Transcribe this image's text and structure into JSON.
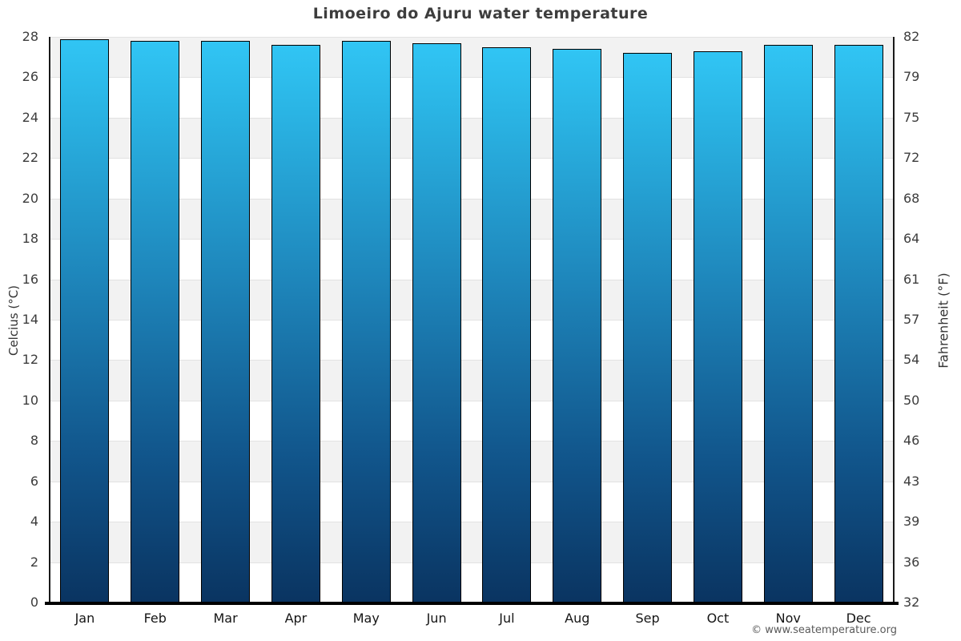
{
  "chart_data": {
    "type": "bar",
    "title": "Limoeiro do Ajuru water temperature",
    "categories": [
      "Jan",
      "Feb",
      "Mar",
      "Apr",
      "May",
      "Jun",
      "Jul",
      "Aug",
      "Sep",
      "Oct",
      "Nov",
      "Dec"
    ],
    "values": [
      27.9,
      27.8,
      27.8,
      27.6,
      27.8,
      27.7,
      27.5,
      27.4,
      27.2,
      27.3,
      27.6,
      27.6
    ],
    "unit": "°C",
    "ylabel_left": "Celcius (°C)",
    "ylabel_right": "Fahrenheit (°F)",
    "xlabel": "",
    "ylim": [
      0,
      28
    ],
    "yticks_celsius": [
      0,
      2,
      4,
      6,
      8,
      10,
      12,
      14,
      16,
      18,
      20,
      22,
      24,
      26,
      28
    ],
    "yticks_fahrenheit_labels": [
      "32",
      "36",
      "39",
      "43",
      "46",
      "50",
      "54",
      "57",
      "61",
      "64",
      "68",
      "72",
      "75",
      "79",
      "82"
    ],
    "legend_position": "none",
    "grid": "alternating horizontal bands every 2°C with light gridlines",
    "colors": {
      "bar_gradient_top": "#31c5f4",
      "bar_gradient_bottom": "#0a3461",
      "bar_border": "#000000",
      "band_gray": "#f2f2f2",
      "band_white": "#ffffff",
      "gridline": "#e2e2e2",
      "axis": "#000000",
      "title_text": "#3d3d3d",
      "tick_text": "#3c3c3c",
      "background": "#ffffff"
    }
  },
  "watermark": "© www.seatemperature.org"
}
